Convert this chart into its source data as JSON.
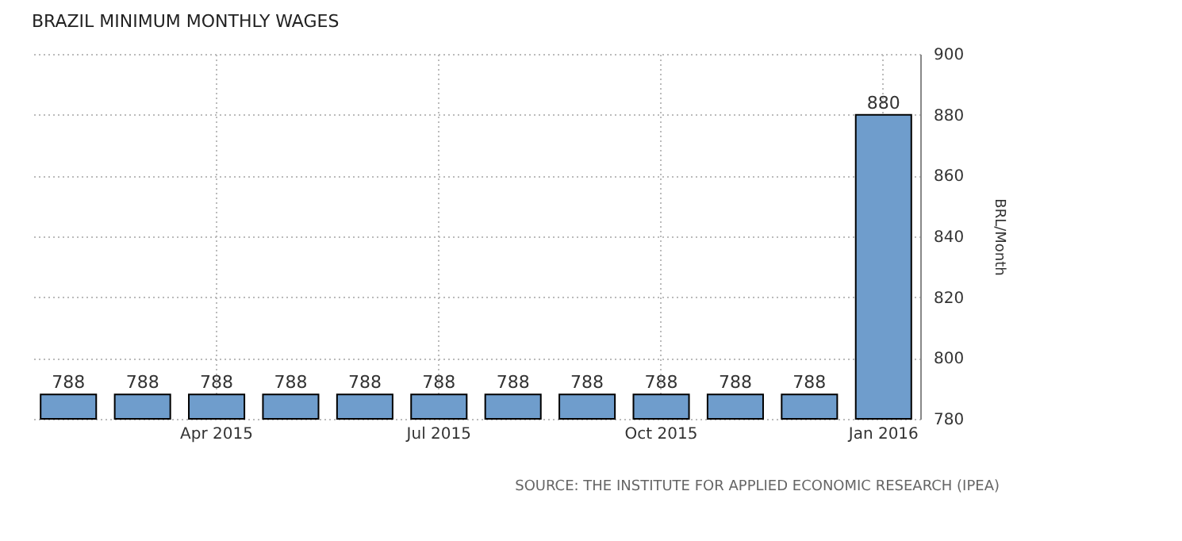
{
  "chart_data": {
    "type": "bar",
    "title": "BRAZIL MINIMUM MONTHLY WAGES",
    "ylabel": "BRL/Month",
    "categories": [
      null,
      null,
      "Apr 2015",
      null,
      null,
      "Jul 2015",
      null,
      null,
      "Oct 2015",
      null,
      null,
      "Jan 2016"
    ],
    "values": [
      788,
      788,
      788,
      788,
      788,
      788,
      788,
      788,
      788,
      788,
      788,
      880
    ],
    "color": "#6f9dcc",
    "ylim": [
      780,
      900
    ],
    "yticks": [
      780,
      800,
      820,
      840,
      860,
      880,
      900
    ],
    "grid": true,
    "data_labels": true,
    "annotations": [
      "SOURCE: THE INSTITUTE FOR APPLIED ECONOMIC RESEARCH (IPEA)"
    ]
  }
}
